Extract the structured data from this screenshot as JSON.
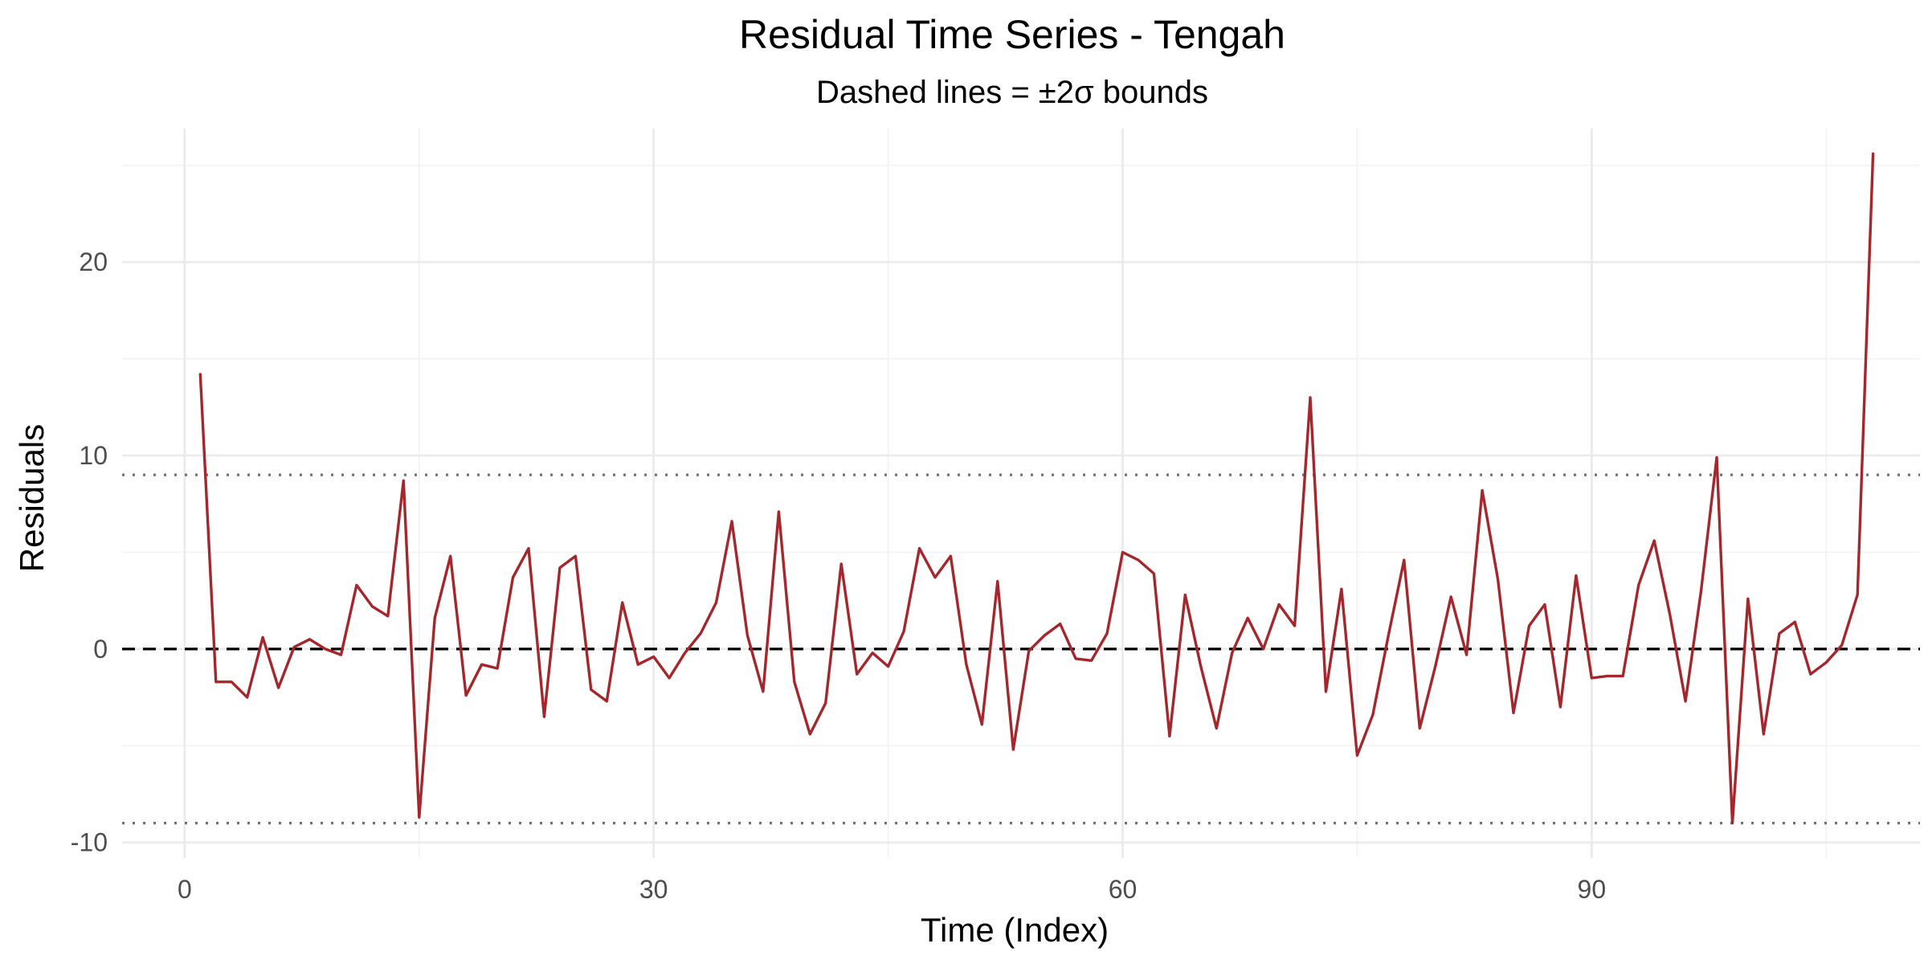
{
  "chart_data": {
    "type": "line",
    "title": "Residual Time Series - Tengah",
    "subtitle": "Dashed lines = ±2σ bounds",
    "xlabel": "Time (Index)",
    "ylabel": "Residuals",
    "xlim": [
      -4,
      111
    ],
    "ylim": [
      -10.8,
      26.9
    ],
    "x_ticks": [
      0,
      30,
      60,
      90
    ],
    "y_ticks": [
      -10,
      0,
      10,
      20
    ],
    "x_minor": [
      15,
      45,
      75,
      105
    ],
    "y_minor": [
      -5,
      5,
      15,
      25
    ],
    "grid": true,
    "reference_lines": [
      {
        "y": 0,
        "style": "dashed",
        "color": "#000000"
      },
      {
        "y": 9.0,
        "style": "dotted",
        "color": "#707070"
      },
      {
        "y": -9.0,
        "style": "dotted",
        "color": "#707070"
      }
    ],
    "series": [
      {
        "color": "#a3272c",
        "x": [
          1,
          2,
          3,
          4,
          5,
          6,
          7,
          8,
          9,
          10,
          11,
          12,
          13,
          14,
          15,
          16,
          17,
          18,
          19,
          20,
          21,
          22,
          23,
          24,
          25,
          26,
          27,
          28,
          29,
          30,
          31,
          32,
          33,
          34,
          35,
          36,
          37,
          38,
          39,
          40,
          41,
          42,
          43,
          44,
          45,
          46,
          47,
          48,
          49,
          50,
          51,
          52,
          53,
          54,
          55,
          56,
          57,
          58,
          59,
          60,
          61,
          62,
          63,
          64,
          65,
          66,
          67,
          68,
          69,
          70,
          71,
          72,
          73,
          74,
          75,
          76,
          77,
          78,
          79,
          80,
          81,
          82,
          83,
          84,
          85,
          86,
          87,
          88,
          89,
          90,
          91,
          92,
          93,
          94,
          95,
          96,
          97,
          98,
          99,
          100,
          101,
          102,
          103,
          104,
          105,
          106,
          107,
          108
        ],
        "y": [
          14.2,
          -1.7,
          -1.7,
          -2.5,
          0.6,
          -2.0,
          0.1,
          0.5,
          0.0,
          -0.3,
          3.3,
          2.2,
          1.7,
          8.7,
          -8.7,
          1.6,
          4.8,
          -2.4,
          -0.8,
          -1.0,
          3.7,
          5.2,
          -3.5,
          4.2,
          4.8,
          -2.1,
          -2.7,
          2.4,
          -0.8,
          -0.4,
          -1.5,
          -0.2,
          0.8,
          2.4,
          6.6,
          0.7,
          -2.2,
          7.1,
          -1.7,
          -4.4,
          -2.8,
          4.4,
          -1.3,
          -0.2,
          -0.9,
          0.9,
          5.2,
          3.7,
          4.8,
          -0.8,
          -3.9,
          3.5,
          -5.2,
          -0.1,
          0.7,
          1.3,
          -0.5,
          -0.6,
          0.8,
          5.0,
          4.6,
          3.9,
          -4.5,
          2.8,
          -0.9,
          -4.1,
          -0.2,
          1.6,
          0.0,
          2.3,
          1.2,
          13.0,
          -2.2,
          3.1,
          -5.5,
          -3.4,
          0.7,
          4.6,
          -4.1,
          -0.9,
          2.7,
          -0.3,
          8.2,
          3.6,
          -3.3,
          1.2,
          2.3,
          -3.0,
          3.8,
          -1.5,
          -1.4,
          -1.4,
          3.3,
          5.6,
          1.8,
          -2.7,
          3.0,
          9.9,
          -9.0,
          2.6,
          -4.4,
          0.8,
          1.4,
          -1.3,
          -0.7,
          0.2,
          2.8,
          25.6
        ]
      }
    ]
  }
}
